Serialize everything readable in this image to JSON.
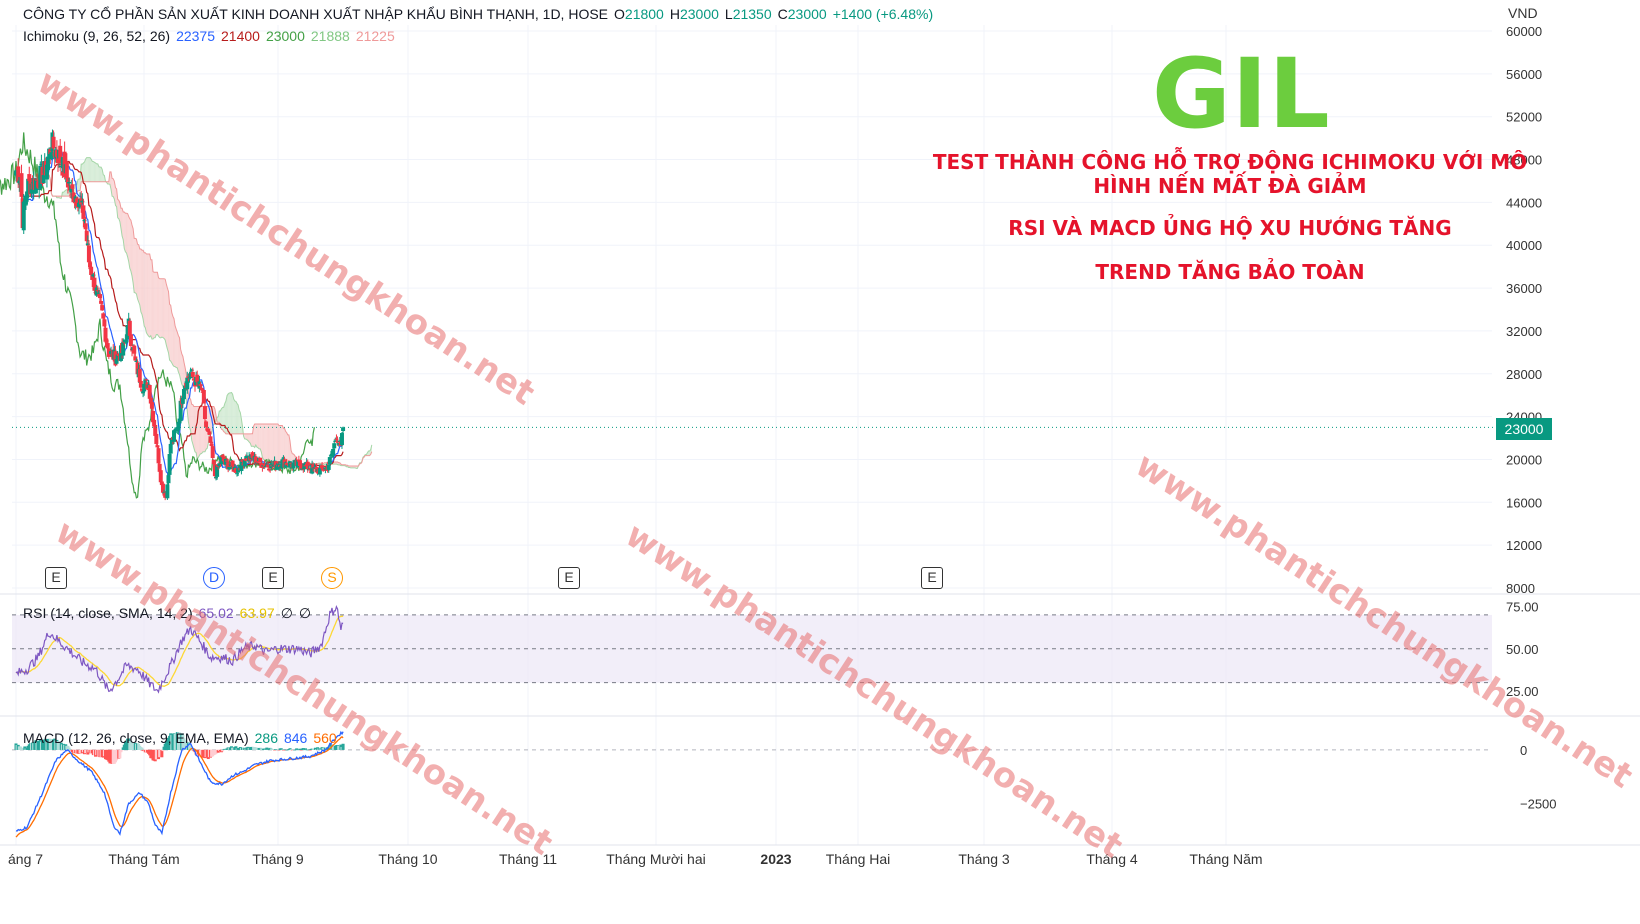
{
  "header": {
    "title": "CÔNG TY CỔ PHẦN SẢN XUẤT KINH DOANH XUẤT NHẬP KHẨU BÌNH THẠNH, 1D, HOSE",
    "o_label": "O",
    "o_value": "21800",
    "h_label": "H",
    "h_value": "23000",
    "l_label": "L",
    "l_value": "21350",
    "c_label": "C",
    "c_value": "23000",
    "change": "+1400 (+6.48%)"
  },
  "ichimoku": {
    "label": "Ichimoku (9, 26, 52, 26)",
    "v1": "22375",
    "v2": "21400",
    "v3": "23000",
    "v4": "21888",
    "v5": "21225"
  },
  "rsi_legend": {
    "label": "RSI (14, close, SMA, 14, 2)",
    "v1": "65.02",
    "v2": "63.97",
    "v3": "∅",
    "v4": "∅"
  },
  "macd_legend": {
    "label": "MACD (12, 26, close, 9, EMA, EMA)",
    "v1": "286",
    "v2": "846",
    "v3": "560"
  },
  "overlay": {
    "ticker": "GIL",
    "note1": "TEST THÀNH CÔNG HỖ TRỢ ĐỘNG ICHIMOKU VỚI MÔ HÌNH NẾN MẤT ĐÀ GIẢM",
    "note2": "RSI VÀ MACD ỦNG HỘ XU HƯỚNG TĂNG",
    "note3": "TREND TĂNG BẢO TOÀN",
    "watermark": "www.phantichchungkhoan.net"
  },
  "currency": "VND",
  "last_price": "23000",
  "events": [
    "E",
    "D",
    "E",
    "S",
    "E",
    "E"
  ],
  "colors": {
    "up": "#089981",
    "down": "#f23645",
    "tenkan": "#2962ff",
    "kijun": "#b71c1c",
    "lagging": "#43a047",
    "cloud_bear": "#f7c9c9",
    "cloud_bull": "#c8e6c9",
    "rsi": "#7e57c2",
    "rsi_ma": "#fdd835",
    "macd": "#2962ff",
    "signal": "#ff6d00"
  },
  "chart_data": [
    {
      "type": "candlestick",
      "title": "",
      "y_ticks": [
        60000,
        56000,
        52000,
        48000,
        44000,
        40000,
        36000,
        32000,
        28000,
        24000,
        20000,
        16000,
        12000,
        8000
      ],
      "ylim": [
        8000,
        60000
      ],
      "x_labels": [
        "áng 7",
        "Tháng Tám",
        "Tháng 9",
        "Tháng 10",
        "Tháng 11",
        "Tháng Mười hai",
        "2023",
        "Tháng Hai",
        "Tháng 3",
        "Tháng 4",
        "Tháng Năm"
      ],
      "close_anchors": [
        [
          0,
          47000
        ],
        [
          4,
          46500
        ],
        [
          6,
          42500
        ],
        [
          10,
          45500
        ],
        [
          18,
          46000
        ],
        [
          26,
          46800
        ],
        [
          32,
          49500
        ],
        [
          38,
          48500
        ],
        [
          44,
          47000
        ],
        [
          50,
          45000
        ],
        [
          56,
          44500
        ],
        [
          62,
          42500
        ],
        [
          66,
          38500
        ],
        [
          72,
          36000
        ],
        [
          78,
          33500
        ],
        [
          84,
          30000
        ],
        [
          90,
          29500
        ],
        [
          96,
          30000
        ],
        [
          102,
          32500
        ],
        [
          108,
          29000
        ],
        [
          114,
          27000
        ],
        [
          120,
          27000
        ],
        [
          126,
          22500
        ],
        [
          132,
          17500
        ],
        [
          136,
          16500
        ],
        [
          140,
          21500
        ],
        [
          146,
          23000
        ],
        [
          152,
          27000
        ],
        [
          158,
          28000
        ],
        [
          164,
          27000
        ],
        [
          168,
          26500
        ],
        [
          172,
          23000
        ],
        [
          176,
          21500
        ],
        [
          180,
          18500
        ],
        [
          186,
          20000
        ],
        [
          192,
          19500
        ],
        [
          200,
          19000
        ],
        [
          208,
          20200
        ],
        [
          216,
          20000
        ],
        [
          224,
          19500
        ],
        [
          232,
          19400
        ],
        [
          240,
          19800
        ],
        [
          248,
          19600
        ],
        [
          256,
          19500
        ],
        [
          264,
          19300
        ],
        [
          270,
          19000
        ],
        [
          276,
          19000
        ],
        [
          282,
          19300
        ],
        [
          286,
          20500
        ],
        [
          290,
          22300
        ],
        [
          294,
          21000
        ],
        [
          296,
          23000
        ]
      ],
      "last_close": 23000,
      "ichimoku_last": {
        "tenkan": 22375,
        "kijun": 21400,
        "lagging": 23000,
        "span_a": 21888,
        "span_b": 21225
      }
    },
    {
      "type": "line",
      "title": "RSI",
      "y_ticks": [
        75,
        50,
        25
      ],
      "ylim": [
        15,
        80
      ],
      "bands": [
        30,
        50,
        70
      ],
      "rsi_anchors": [
        [
          0,
          35
        ],
        [
          10,
          38
        ],
        [
          20,
          45
        ],
        [
          30,
          60
        ],
        [
          38,
          55
        ],
        [
          50,
          48
        ],
        [
          60,
          42
        ],
        [
          72,
          38
        ],
        [
          84,
          25
        ],
        [
          90,
          30
        ],
        [
          100,
          40
        ],
        [
          110,
          38
        ],
        [
          120,
          30
        ],
        [
          128,
          25
        ],
        [
          140,
          40
        ],
        [
          150,
          55
        ],
        [
          158,
          62
        ],
        [
          166,
          55
        ],
        [
          176,
          45
        ],
        [
          186,
          45
        ],
        [
          196,
          43
        ],
        [
          206,
          50
        ],
        [
          216,
          52
        ],
        [
          226,
          48
        ],
        [
          236,
          50
        ],
        [
          246,
          50
        ],
        [
          256,
          50
        ],
        [
          266,
          47
        ],
        [
          276,
          52
        ],
        [
          284,
          70
        ],
        [
          290,
          75
        ],
        [
          294,
          62
        ],
        [
          296,
          65
        ]
      ],
      "last": {
        "rsi": 65.02,
        "ma": 63.97
      }
    },
    {
      "type": "bar+line",
      "title": "MACD",
      "y_ticks": [
        0,
        -2500
      ],
      "ylim": [
        -4200,
        1300
      ],
      "macd_anchors": [
        [
          0,
          -3800
        ],
        [
          10,
          -3600
        ],
        [
          24,
          -2000
        ],
        [
          36,
          -500
        ],
        [
          46,
          0
        ],
        [
          56,
          -500
        ],
        [
          68,
          -1000
        ],
        [
          80,
          -2000
        ],
        [
          88,
          -3500
        ],
        [
          94,
          -3900
        ],
        [
          102,
          -2500
        ],
        [
          112,
          -2000
        ],
        [
          120,
          -2500
        ],
        [
          126,
          -3500
        ],
        [
          132,
          -3900
        ],
        [
          140,
          -2000
        ],
        [
          150,
          0
        ],
        [
          158,
          300
        ],
        [
          166,
          -500
        ],
        [
          176,
          -1500
        ],
        [
          186,
          -1600
        ],
        [
          196,
          -1200
        ],
        [
          206,
          -1000
        ],
        [
          216,
          -700
        ],
        [
          230,
          -500
        ],
        [
          250,
          -400
        ],
        [
          266,
          -300
        ],
        [
          280,
          0
        ],
        [
          290,
          600
        ],
        [
          296,
          846
        ]
      ],
      "last": {
        "histogram": 286,
        "macd": 846,
        "signal": 560
      }
    }
  ]
}
